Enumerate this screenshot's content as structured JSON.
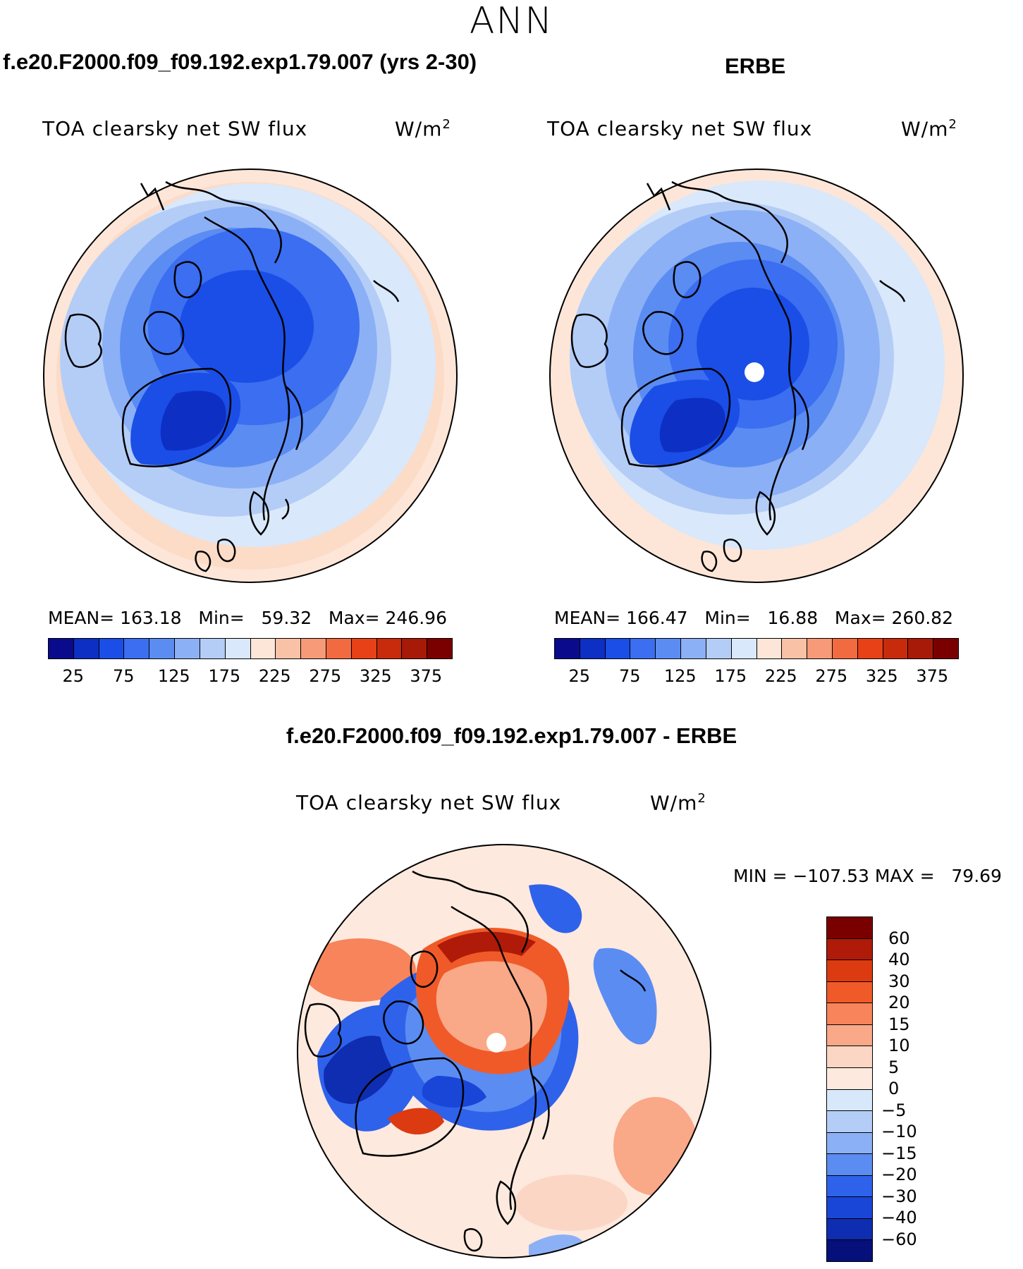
{
  "title": "ANN",
  "panels": [
    {
      "heading": "f.e20.F2000.f09_f09.192.exp1.79.007 (yrs 2-30)",
      "subtitle": "TOA clearsky net SW flux",
      "units": "W/m",
      "units_sup": "2",
      "stats": "MEAN= 163.18   Min=   59.32   Max= 246.96",
      "pole_hole": false
    },
    {
      "heading": "ERBE",
      "subtitle": "TOA clearsky net SW flux",
      "units": "W/m",
      "units_sup": "2",
      "stats": "MEAN= 166.47   Min=   16.88   Max= 260.82",
      "pole_hole": true
    }
  ],
  "colorbar_abs": {
    "colors": [
      "#0a0a8c",
      "#0d2fc4",
      "#1a4ee6",
      "#3b6ef0",
      "#5b8cf2",
      "#8cb0f5",
      "#b4cdf7",
      "#d9e8fb",
      "#fde6d8",
      "#f9c2a6",
      "#f79a77",
      "#f26a3f",
      "#e84118",
      "#c82a0c",
      "#a81a08",
      "#7a0000"
    ],
    "tick_labels": [
      "25",
      "75",
      "125",
      "175",
      "225",
      "275",
      "325",
      "375"
    ]
  },
  "diff": {
    "heading": "f.e20.F2000.f09_f09.192.exp1.79.007 - ERBE",
    "subtitle": "TOA clearsky net SW flux",
    "units": "W/m",
    "units_sup": "2",
    "minmax": "MIN = −107.53 MAX =   79.69",
    "colors": [
      "#7a0000",
      "#b01a08",
      "#dc3a10",
      "#f05a28",
      "#f7845a",
      "#f9a888",
      "#fcd6c4",
      "#fde9de",
      "#d8e8fb",
      "#b4cdf7",
      "#8cb0f5",
      "#5b8cf2",
      "#2f62ea",
      "#1a46d8",
      "#0f2db0",
      "#06107a"
    ],
    "tick_labels": [
      "60",
      "40",
      "30",
      "20",
      "15",
      "10",
      "5",
      "0",
      "−5",
      "−10",
      "−15",
      "−20",
      "−30",
      "−40",
      "−60"
    ]
  }
}
